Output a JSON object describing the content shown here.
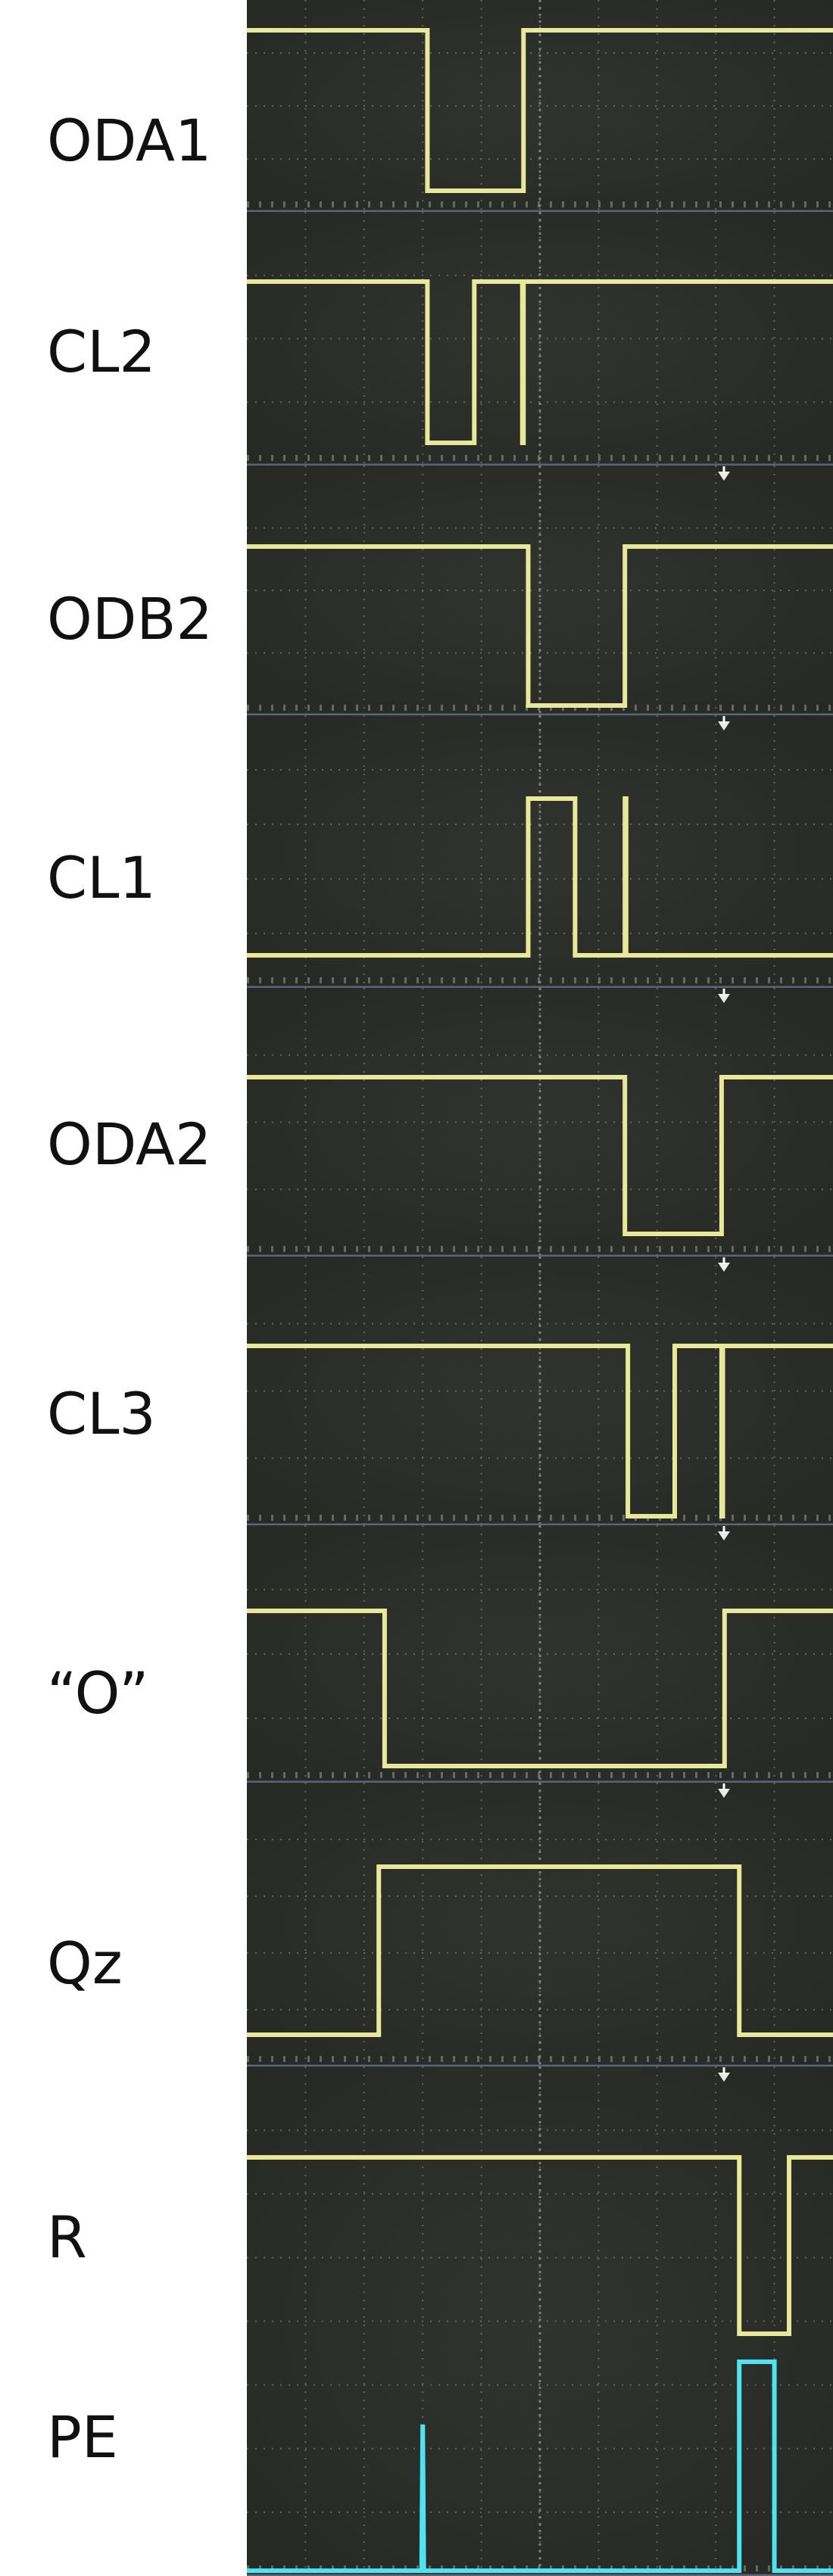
{
  "chart_data": {
    "type": "line",
    "title": "",
    "xlabel": "",
    "ylabel": "",
    "grid": true,
    "x_range": [
      0,
      10
    ],
    "y_range": [
      0,
      1
    ],
    "colors": {
      "trace_yellow": "#e7e89a",
      "trace_cyan": "#4fe3f2",
      "screen": "#31332f",
      "screen_dark": "#262824",
      "grid": "#8f938b",
      "panel_border": "#5d6478",
      "trigger_marker": "#ffffff"
    },
    "series": [
      {
        "name": "ODA1",
        "color": "#e7e89a",
        "points": [
          [
            0,
            1
          ],
          [
            3.08,
            1
          ],
          [
            3.08,
            0
          ],
          [
            4.72,
            0
          ],
          [
            4.72,
            1
          ],
          [
            10,
            1
          ]
        ]
      },
      {
        "name": "CL2",
        "color": "#e7e89a",
        "points": [
          [
            0,
            1
          ],
          [
            3.08,
            1
          ],
          [
            3.08,
            0
          ],
          [
            3.88,
            0
          ],
          [
            3.88,
            1
          ],
          [
            4.7,
            1
          ],
          [
            4.7,
            0
          ],
          [
            4.72,
            0
          ],
          [
            4.72,
            1
          ],
          [
            10,
            1
          ]
        ]
      },
      {
        "name": "ODB2",
        "color": "#e7e89a",
        "points": [
          [
            0,
            1
          ],
          [
            4.8,
            1
          ],
          [
            4.8,
            0
          ],
          [
            6.45,
            0
          ],
          [
            6.45,
            1
          ],
          [
            10,
            1
          ]
        ]
      },
      {
        "name": "CL1",
        "color": "#e7e89a",
        "points": [
          [
            0,
            0
          ],
          [
            4.8,
            0
          ],
          [
            4.8,
            1
          ],
          [
            5.6,
            1
          ],
          [
            5.6,
            0
          ],
          [
            6.45,
            0
          ],
          [
            6.45,
            1
          ],
          [
            6.47,
            1
          ],
          [
            6.47,
            0
          ],
          [
            10,
            0
          ]
        ]
      },
      {
        "name": "ODA2",
        "color": "#e7e89a",
        "points": [
          [
            0,
            1
          ],
          [
            6.45,
            1
          ],
          [
            6.45,
            0
          ],
          [
            8.1,
            0
          ],
          [
            8.1,
            1
          ],
          [
            10,
            1
          ]
        ]
      },
      {
        "name": "CL3",
        "color": "#e7e89a",
        "points": [
          [
            0,
            1
          ],
          [
            6.5,
            1
          ],
          [
            6.5,
            0
          ],
          [
            7.3,
            0
          ],
          [
            7.3,
            1
          ],
          [
            8.1,
            1
          ],
          [
            8.1,
            0
          ],
          [
            8.12,
            0
          ],
          [
            8.12,
            1
          ],
          [
            10,
            1
          ]
        ]
      },
      {
        "name": "“O”",
        "color": "#e7e89a",
        "points": [
          [
            0,
            1
          ],
          [
            2.35,
            1
          ],
          [
            2.35,
            0
          ],
          [
            8.15,
            0
          ],
          [
            8.15,
            1
          ],
          [
            10,
            1
          ]
        ]
      },
      {
        "name": "Qz",
        "color": "#e7e89a",
        "points": [
          [
            0,
            0
          ],
          [
            2.25,
            0
          ],
          [
            2.25,
            1
          ],
          [
            8.4,
            1
          ],
          [
            8.4,
            0
          ],
          [
            10,
            0
          ]
        ]
      },
      {
        "name": "R",
        "color": "#e7e89a",
        "points": [
          [
            0,
            1
          ],
          [
            8.4,
            1
          ],
          [
            8.4,
            0
          ],
          [
            9.25,
            0
          ],
          [
            9.25,
            1
          ],
          [
            10,
            1
          ]
        ]
      },
      {
        "name": "PE",
        "color": "#4fe3f2",
        "points": [
          [
            0,
            0
          ],
          [
            2.98,
            0
          ],
          [
            3.0,
            0.7
          ],
          [
            3.02,
            0
          ],
          [
            8.4,
            0
          ],
          [
            8.4,
            1
          ],
          [
            9.0,
            1
          ],
          [
            9.0,
            0
          ],
          [
            10,
            0
          ]
        ]
      }
    ]
  }
}
